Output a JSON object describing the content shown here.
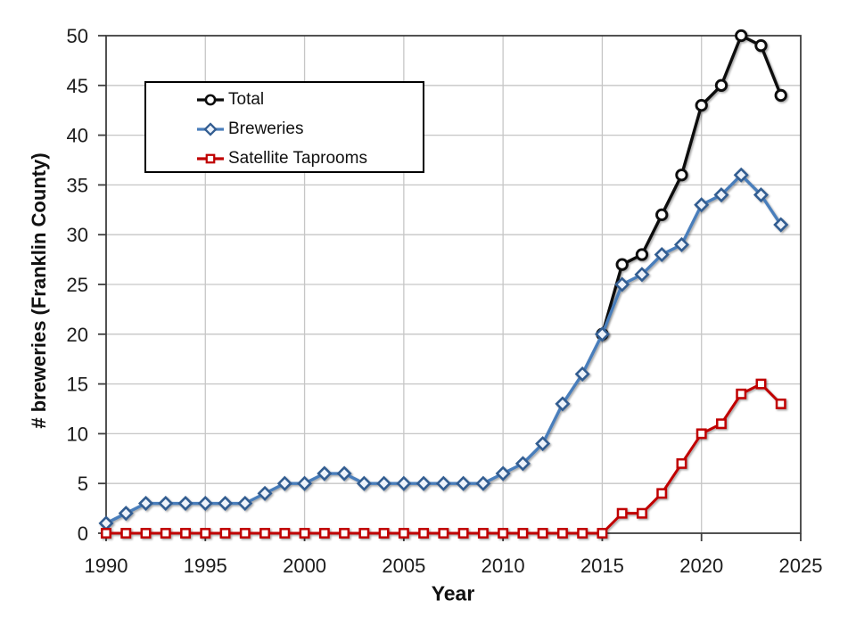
{
  "chart_data": {
    "type": "line",
    "title": "",
    "axes": {
      "xlabel": "Year",
      "ylabel": "# breweries (Franklin County)",
      "xlim": [
        1990,
        2025
      ],
      "ylim": [
        0,
        50
      ],
      "x_ticks": [
        1990,
        1995,
        2000,
        2005,
        2010,
        2015,
        2020,
        2025
      ],
      "y_ticks": [
        0,
        5,
        10,
        15,
        20,
        25,
        30,
        35,
        40,
        45,
        50
      ],
      "grid": true
    },
    "legend": {
      "position": "inside-top-left"
    },
    "series": [
      {
        "name": "Total",
        "marker": "circle",
        "line_color": "#0b0b0b",
        "marker_border": "#0b0b0b",
        "marker_fill": "#ffffff",
        "x": [
          2015,
          2016,
          2017,
          2018,
          2019,
          2020,
          2021,
          2022,
          2023,
          2024
        ],
        "values": [
          20,
          27,
          28,
          32,
          36,
          43,
          45,
          50,
          49,
          44
        ]
      },
      {
        "name": "Breweries",
        "marker": "diamond",
        "line_color": "#4a7ebb",
        "marker_border": "#335d91",
        "marker_fill": "#edf3fb",
        "x": [
          1990,
          1991,
          1992,
          1993,
          1994,
          1995,
          1996,
          1997,
          1998,
          1999,
          2000,
          2001,
          2002,
          2003,
          2004,
          2005,
          2006,
          2007,
          2008,
          2009,
          2010,
          2011,
          2012,
          2013,
          2014,
          2015,
          2016,
          2017,
          2018,
          2019,
          2020,
          2021,
          2022,
          2023,
          2024
        ],
        "values": [
          1,
          2,
          3,
          3,
          3,
          3,
          3,
          3,
          4,
          5,
          5,
          6,
          6,
          5,
          5,
          5,
          5,
          5,
          5,
          5,
          6,
          7,
          9,
          13,
          16,
          20,
          25,
          26,
          28,
          29,
          33,
          34,
          36,
          34,
          31
        ]
      },
      {
        "name": "Satellite Taprooms",
        "marker": "square",
        "line_color": "#c00000",
        "marker_border": "#c00000",
        "marker_fill": "#ffffff",
        "x": [
          1990,
          1991,
          1992,
          1993,
          1994,
          1995,
          1996,
          1997,
          1998,
          1999,
          2000,
          2001,
          2002,
          2003,
          2004,
          2005,
          2006,
          2007,
          2008,
          2009,
          2010,
          2011,
          2012,
          2013,
          2014,
          2015,
          2016,
          2017,
          2018,
          2019,
          2020,
          2021,
          2022,
          2023,
          2024
        ],
        "values": [
          0,
          0,
          0,
          0,
          0,
          0,
          0,
          0,
          0,
          0,
          0,
          0,
          0,
          0,
          0,
          0,
          0,
          0,
          0,
          0,
          0,
          0,
          0,
          0,
          0,
          0,
          2,
          2,
          4,
          7,
          10,
          11,
          14,
          15,
          13
        ]
      }
    ]
  }
}
